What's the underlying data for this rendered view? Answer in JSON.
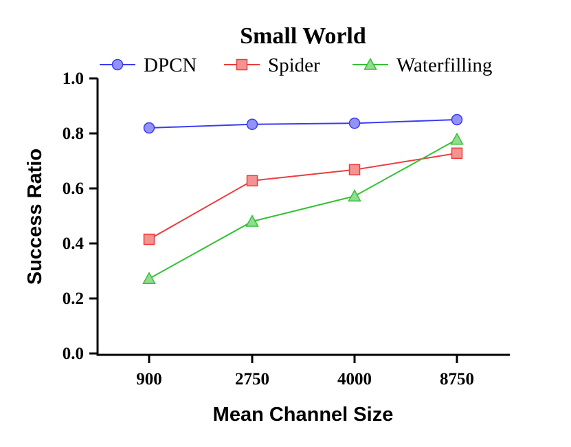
{
  "chart_data": {
    "type": "line",
    "title": "Small World",
    "xlabel": "Mean Channel Size",
    "ylabel": "Success Ratio",
    "categories": [
      "900",
      "2750",
      "4000",
      "8750"
    ],
    "ylim": [
      0,
      1.0
    ],
    "yticks": [
      "0.0",
      "0.2",
      "0.4",
      "0.6",
      "0.8",
      "1.0"
    ],
    "grid": false,
    "legend_position": "top",
    "series": [
      {
        "name": "DPCN",
        "values": [
          0.82,
          0.833,
          0.837,
          0.85
        ],
        "color": "#3b3bf0",
        "marker": "circle"
      },
      {
        "name": "Spider",
        "values": [
          0.415,
          0.628,
          0.668,
          0.728
        ],
        "color": "#ec3b3b",
        "marker": "square"
      },
      {
        "name": "Waterfilling",
        "values": [
          0.272,
          0.48,
          0.572,
          0.778
        ],
        "color": "#35c035",
        "marker": "triangle"
      }
    ]
  }
}
